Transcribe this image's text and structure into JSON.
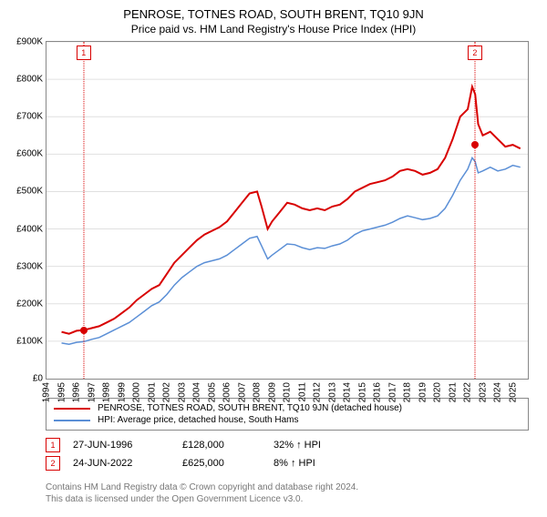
{
  "title": "PENROSE, TOTNES ROAD, SOUTH BRENT, TQ10 9JN",
  "subtitle": "Price paid vs. HM Land Registry's House Price Index (HPI)",
  "chart": {
    "type": "line",
    "background_color": "#ffffff",
    "grid_color": "#e0e0e0",
    "axis_color": "#888888",
    "title_fontsize": 13,
    "label_fontsize": 10,
    "ylim": [
      0,
      900000
    ],
    "ytick_step": 100000,
    "yticks": [
      "£0",
      "£100K",
      "£200K",
      "£300K",
      "£400K",
      "£500K",
      "£600K",
      "£700K",
      "£800K",
      "£900K"
    ],
    "xlim": [
      1994,
      2026
    ],
    "xticks": [
      1994,
      1995,
      1996,
      1997,
      1998,
      1999,
      2000,
      2001,
      2002,
      2003,
      2004,
      2005,
      2006,
      2007,
      2008,
      2009,
      2010,
      2011,
      2012,
      2013,
      2014,
      2015,
      2016,
      2017,
      2018,
      2019,
      2020,
      2021,
      2022,
      2023,
      2024,
      2025
    ],
    "series": [
      {
        "name": "PENROSE, TOTNES ROAD, SOUTH BRENT, TQ10 9JN (detached house)",
        "color": "#d80000",
        "line_width": 2,
        "points": [
          [
            1995.0,
            125000
          ],
          [
            1995.5,
            120000
          ],
          [
            1996.0,
            128000
          ],
          [
            1996.5,
            130000
          ],
          [
            1997.0,
            135000
          ],
          [
            1997.5,
            140000
          ],
          [
            1998.0,
            150000
          ],
          [
            1998.5,
            160000
          ],
          [
            1999.0,
            175000
          ],
          [
            1999.5,
            190000
          ],
          [
            2000.0,
            210000
          ],
          [
            2000.5,
            225000
          ],
          [
            2001.0,
            240000
          ],
          [
            2001.5,
            250000
          ],
          [
            2002.0,
            280000
          ],
          [
            2002.5,
            310000
          ],
          [
            2003.0,
            330000
          ],
          [
            2003.5,
            350000
          ],
          [
            2004.0,
            370000
          ],
          [
            2004.5,
            385000
          ],
          [
            2005.0,
            395000
          ],
          [
            2005.5,
            405000
          ],
          [
            2006.0,
            420000
          ],
          [
            2006.5,
            445000
          ],
          [
            2007.0,
            470000
          ],
          [
            2007.5,
            495000
          ],
          [
            2008.0,
            500000
          ],
          [
            2008.3,
            460000
          ],
          [
            2008.7,
            400000
          ],
          [
            2009.0,
            420000
          ],
          [
            2009.5,
            445000
          ],
          [
            2010.0,
            470000
          ],
          [
            2010.5,
            465000
          ],
          [
            2011.0,
            455000
          ],
          [
            2011.5,
            450000
          ],
          [
            2012.0,
            455000
          ],
          [
            2012.5,
            450000
          ],
          [
            2013.0,
            460000
          ],
          [
            2013.5,
            465000
          ],
          [
            2014.0,
            480000
          ],
          [
            2014.5,
            500000
          ],
          [
            2015.0,
            510000
          ],
          [
            2015.5,
            520000
          ],
          [
            2016.0,
            525000
          ],
          [
            2016.5,
            530000
          ],
          [
            2017.0,
            540000
          ],
          [
            2017.5,
            555000
          ],
          [
            2018.0,
            560000
          ],
          [
            2018.5,
            555000
          ],
          [
            2019.0,
            545000
          ],
          [
            2019.5,
            550000
          ],
          [
            2020.0,
            560000
          ],
          [
            2020.5,
            590000
          ],
          [
            2021.0,
            640000
          ],
          [
            2021.5,
            700000
          ],
          [
            2022.0,
            720000
          ],
          [
            2022.3,
            780000
          ],
          [
            2022.5,
            760000
          ],
          [
            2022.7,
            680000
          ],
          [
            2023.0,
            650000
          ],
          [
            2023.5,
            660000
          ],
          [
            2024.0,
            640000
          ],
          [
            2024.5,
            620000
          ],
          [
            2025.0,
            625000
          ],
          [
            2025.5,
            615000
          ]
        ]
      },
      {
        "name": "HPI: Average price, detached house, South Hams",
        "color": "#5b8fd6",
        "line_width": 1.5,
        "points": [
          [
            1995.0,
            95000
          ],
          [
            1995.5,
            92000
          ],
          [
            1996.0,
            97000
          ],
          [
            1996.5,
            99000
          ],
          [
            1997.0,
            105000
          ],
          [
            1997.5,
            110000
          ],
          [
            1998.0,
            120000
          ],
          [
            1998.5,
            130000
          ],
          [
            1999.0,
            140000
          ],
          [
            1999.5,
            150000
          ],
          [
            2000.0,
            165000
          ],
          [
            2000.5,
            180000
          ],
          [
            2001.0,
            195000
          ],
          [
            2001.5,
            205000
          ],
          [
            2002.0,
            225000
          ],
          [
            2002.5,
            250000
          ],
          [
            2003.0,
            270000
          ],
          [
            2003.5,
            285000
          ],
          [
            2004.0,
            300000
          ],
          [
            2004.5,
            310000
          ],
          [
            2005.0,
            315000
          ],
          [
            2005.5,
            320000
          ],
          [
            2006.0,
            330000
          ],
          [
            2006.5,
            345000
          ],
          [
            2007.0,
            360000
          ],
          [
            2007.5,
            375000
          ],
          [
            2008.0,
            380000
          ],
          [
            2008.3,
            355000
          ],
          [
            2008.7,
            320000
          ],
          [
            2009.0,
            330000
          ],
          [
            2009.5,
            345000
          ],
          [
            2010.0,
            360000
          ],
          [
            2010.5,
            358000
          ],
          [
            2011.0,
            350000
          ],
          [
            2011.5,
            345000
          ],
          [
            2012.0,
            350000
          ],
          [
            2012.5,
            348000
          ],
          [
            2013.0,
            355000
          ],
          [
            2013.5,
            360000
          ],
          [
            2014.0,
            370000
          ],
          [
            2014.5,
            385000
          ],
          [
            2015.0,
            395000
          ],
          [
            2015.5,
            400000
          ],
          [
            2016.0,
            405000
          ],
          [
            2016.5,
            410000
          ],
          [
            2017.0,
            418000
          ],
          [
            2017.5,
            428000
          ],
          [
            2018.0,
            435000
          ],
          [
            2018.5,
            430000
          ],
          [
            2019.0,
            425000
          ],
          [
            2019.5,
            428000
          ],
          [
            2020.0,
            435000
          ],
          [
            2020.5,
            455000
          ],
          [
            2021.0,
            490000
          ],
          [
            2021.5,
            530000
          ],
          [
            2022.0,
            560000
          ],
          [
            2022.3,
            590000
          ],
          [
            2022.5,
            580000
          ],
          [
            2022.7,
            550000
          ],
          [
            2023.0,
            555000
          ],
          [
            2023.5,
            565000
          ],
          [
            2024.0,
            555000
          ],
          [
            2024.5,
            560000
          ],
          [
            2025.0,
            570000
          ],
          [
            2025.5,
            565000
          ]
        ]
      }
    ],
    "markers": [
      {
        "label": "1",
        "x": 1996.47,
        "y": 128000,
        "box_top": true,
        "color": "#d80000"
      },
      {
        "label": "2",
        "x": 2022.48,
        "y": 625000,
        "box_top": true,
        "color": "#d80000"
      }
    ]
  },
  "legend": {
    "items": [
      {
        "color": "#d80000",
        "label": "PENROSE, TOTNES ROAD, SOUTH BRENT, TQ10 9JN (detached house)"
      },
      {
        "color": "#5b8fd6",
        "label": "HPI: Average price, detached house, South Hams"
      }
    ]
  },
  "datapoints": [
    {
      "n": "1",
      "date": "27-JUN-1996",
      "price": "£128,000",
      "delta": "32% ↑ HPI",
      "color": "#d80000"
    },
    {
      "n": "2",
      "date": "24-JUN-2022",
      "price": "£625,000",
      "delta": "8% ↑ HPI",
      "color": "#d80000"
    }
  ],
  "footer": {
    "line1": "Contains HM Land Registry data © Crown copyright and database right 2024.",
    "line2": "This data is licensed under the Open Government Licence v3.0."
  }
}
